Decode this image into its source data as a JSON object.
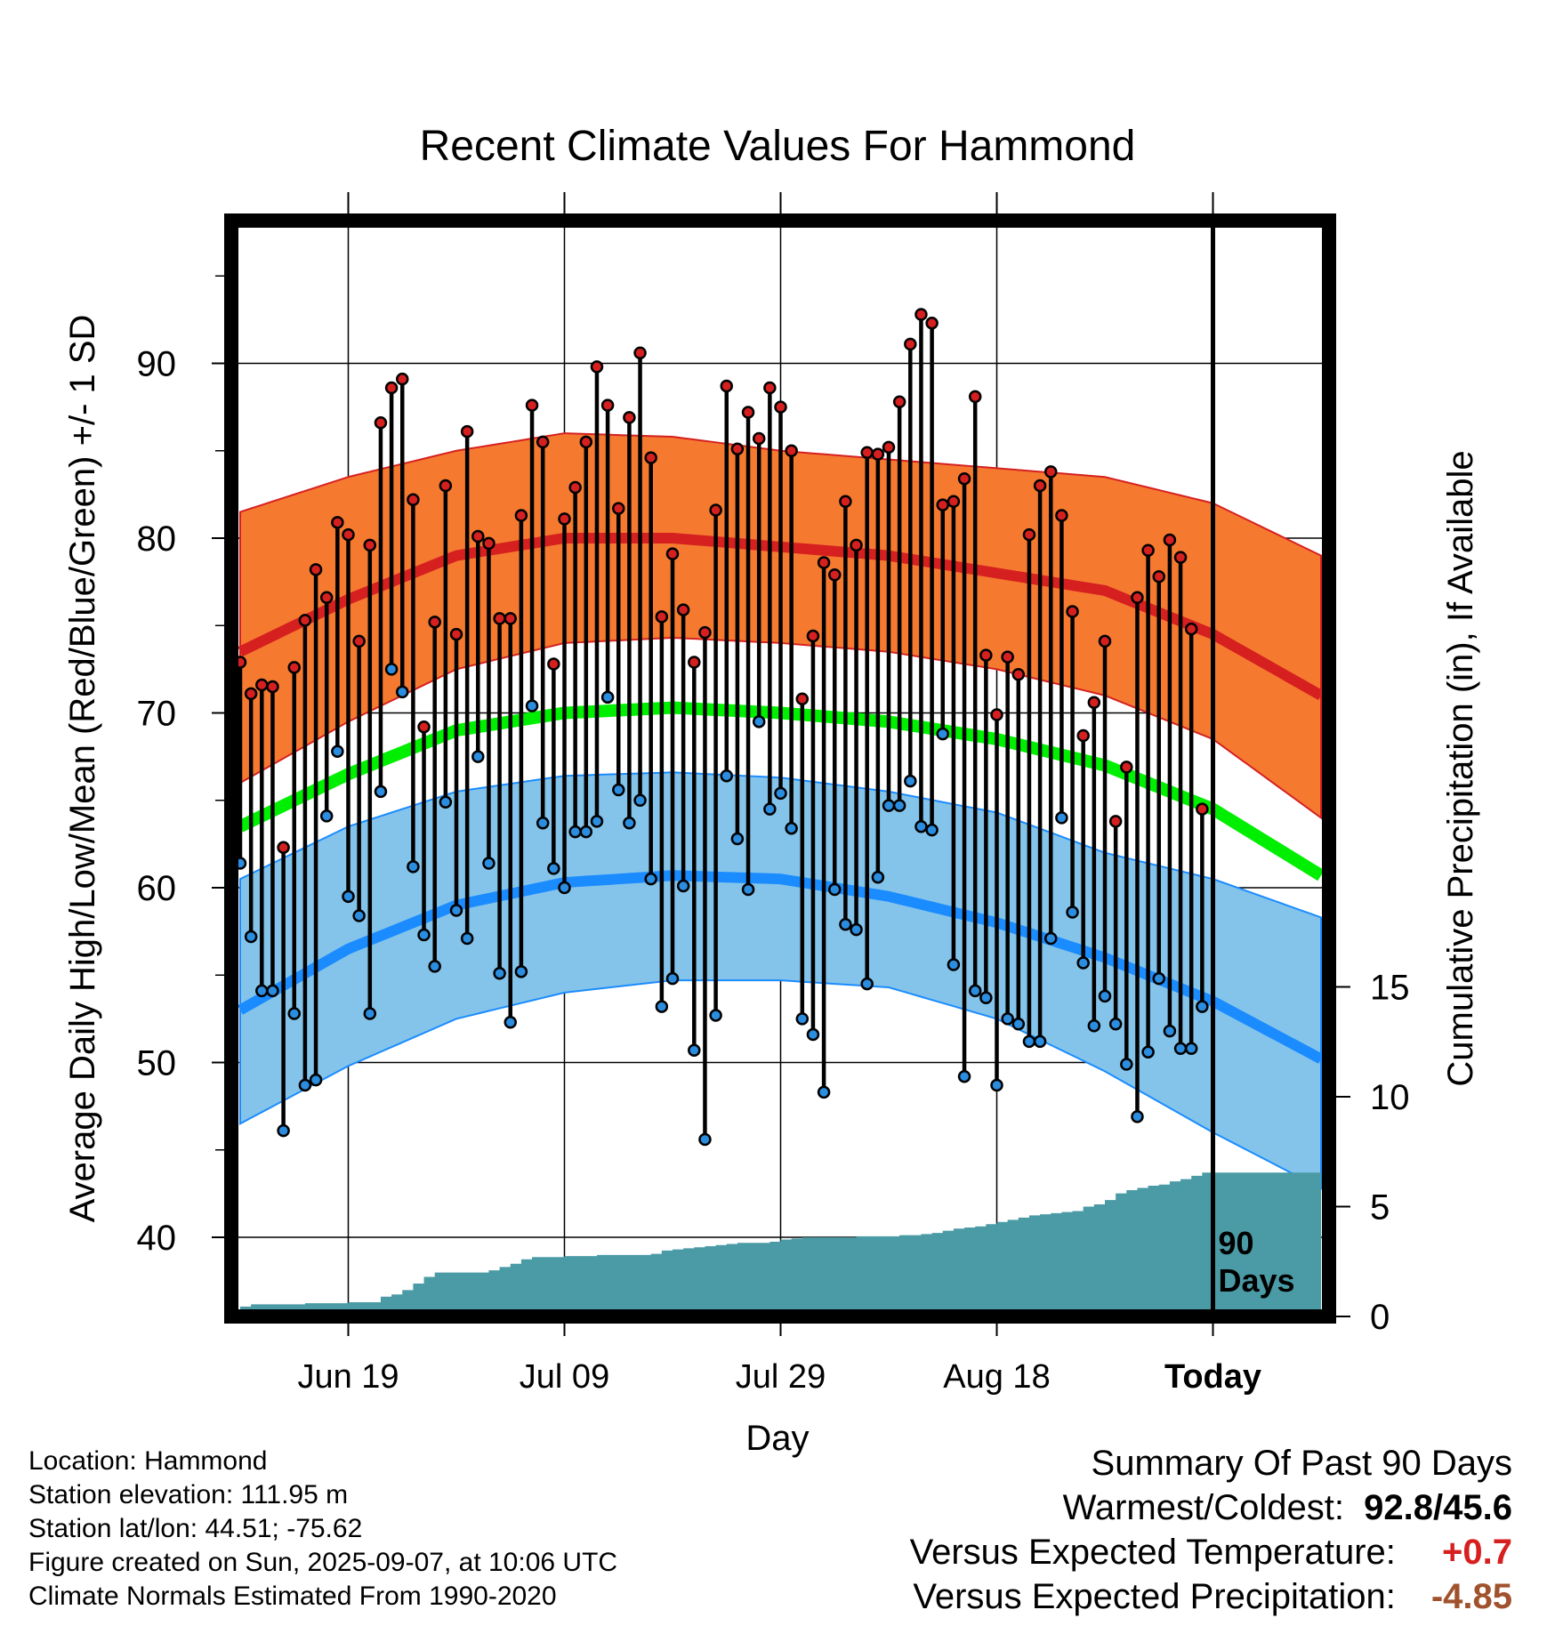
{
  "chart_data": {
    "type": "line",
    "title": "Recent Climate Values For Hammond",
    "xlabel": "Day",
    "ylabel": "Average Daily High/Low/Mean (Red/Blue/Green) +/- 1 SD",
    "y2label": "Cumulative Precipitation (in), If Available",
    "ylim": [
      35,
      98
    ],
    "y2lim": [
      0,
      30
    ],
    "yticks": [
      "40",
      "50",
      "60",
      "70",
      "80",
      "90"
    ],
    "y2ticks": [
      "0",
      "5",
      "10",
      "15"
    ],
    "x_tick_labels": [
      "Jun 19",
      "Jul 09",
      "Jul 29",
      "Aug 18",
      "Today"
    ],
    "x_tick_days": [
      10,
      30,
      50,
      70,
      90
    ],
    "day_range": [
      0,
      100
    ],
    "today_day": 90,
    "marker_text": [
      "90",
      "Days"
    ],
    "grid": true,
    "normals": {
      "days": [
        0,
        10,
        20,
        30,
        40,
        50,
        60,
        70,
        80,
        90,
        100
      ],
      "high_mean": [
        73.5,
        76.5,
        79.0,
        80.0,
        80.0,
        79.5,
        79.0,
        78.0,
        77.0,
        74.5,
        71.0
      ],
      "high_upper": [
        81.5,
        83.5,
        85.0,
        86.0,
        85.8,
        85.0,
        84.5,
        84.0,
        83.5,
        82.0,
        79.0
      ],
      "high_lower": [
        66.0,
        69.5,
        72.5,
        74.0,
        74.3,
        74.0,
        73.5,
        72.5,
        71.0,
        68.5,
        64.0
      ],
      "mean": [
        63.5,
        66.5,
        69.0,
        70.0,
        70.3,
        70.0,
        69.5,
        68.5,
        67.0,
        64.5,
        60.7
      ],
      "low_mean": [
        53.0,
        56.5,
        59.0,
        60.3,
        60.7,
        60.5,
        59.5,
        58.0,
        56.0,
        53.5,
        50.2
      ],
      "low_upper": [
        60.5,
        63.5,
        65.5,
        66.4,
        66.6,
        66.3,
        65.5,
        64.3,
        62.0,
        60.5,
        58.3
      ],
      "low_lower": [
        46.5,
        49.8,
        52.5,
        54.0,
        54.7,
        54.7,
        54.3,
        52.5,
        49.5,
        46.0,
        42.8
      ]
    },
    "series": [
      {
        "name": "High",
        "values": [
          72.9,
          71.1,
          71.6,
          71.5,
          62.3,
          72.6,
          75.3,
          78.2,
          76.6,
          80.9,
          80.2,
          74.1,
          79.6,
          86.6,
          88.6,
          89.1,
          82.2,
          69.2,
          75.2,
          83.0,
          74.5,
          86.1,
          80.1,
          79.7,
          75.4,
          75.4,
          81.3,
          87.6,
          85.5,
          72.8,
          81.1,
          82.9,
          85.5,
          89.8,
          87.6,
          81.7,
          86.9,
          90.6,
          84.6,
          75.5,
          79.1,
          75.9,
          72.9,
          74.6,
          81.6,
          88.7,
          85.1,
          87.2,
          85.7,
          88.6,
          87.5,
          85.0,
          70.8,
          74.4,
          78.6,
          77.9,
          82.1,
          79.6,
          84.9,
          84.8,
          85.2,
          87.8,
          91.1,
          92.8,
          92.3,
          81.9,
          82.1,
          83.4,
          88.1,
          73.3,
          69.9,
          73.2,
          72.2,
          80.2,
          83.0,
          83.8,
          81.3,
          75.8,
          68.7,
          70.6,
          74.1,
          63.8,
          66.9,
          76.6,
          79.3,
          77.8,
          79.9,
          78.9,
          74.8,
          64.5
        ]
      },
      {
        "name": "Low",
        "values": [
          61.4,
          57.2,
          54.1,
          54.1,
          46.1,
          52.8,
          48.7,
          49.0,
          64.1,
          67.8,
          59.5,
          58.4,
          52.8,
          65.5,
          72.5,
          71.2,
          61.2,
          57.3,
          55.5,
          64.9,
          58.7,
          57.1,
          67.5,
          61.4,
          55.1,
          52.3,
          55.2,
          70.4,
          63.7,
          61.1,
          60.0,
          63.2,
          63.2,
          63.8,
          70.9,
          65.6,
          63.7,
          65.0,
          60.5,
          53.2,
          54.8,
          60.1,
          50.7,
          45.6,
          52.7,
          66.4,
          62.8,
          59.9,
          69.5,
          64.5,
          65.4,
          63.4,
          52.5,
          51.6,
          48.3,
          59.9,
          57.9,
          57.6,
          54.5,
          60.6,
          64.7,
          64.7,
          66.1,
          63.5,
          63.3,
          68.8,
          55.6,
          49.2,
          54.1,
          53.7,
          48.7,
          52.5,
          52.2,
          51.2,
          51.2,
          57.1,
          64.0,
          58.6,
          55.7,
          52.1,
          53.8,
          52.2,
          49.9,
          46.9,
          50.6,
          54.8,
          51.8,
          50.8,
          50.8,
          53.2
        ]
      },
      {
        "name": "Cumulative Precipitation",
        "values": [
          0.45,
          0.55,
          0.55,
          0.55,
          0.55,
          0.55,
          0.6,
          0.6,
          0.6,
          0.6,
          0.65,
          0.65,
          0.65,
          0.9,
          1.0,
          1.2,
          1.5,
          1.8,
          2.0,
          2.0,
          2.0,
          2.0,
          2.0,
          2.1,
          2.25,
          2.4,
          2.6,
          2.7,
          2.7,
          2.7,
          2.75,
          2.75,
          2.75,
          2.8,
          2.8,
          2.8,
          2.8,
          2.8,
          2.85,
          3.0,
          3.05,
          3.1,
          3.15,
          3.2,
          3.25,
          3.3,
          3.35,
          3.35,
          3.35,
          3.4,
          3.5,
          3.55,
          3.6,
          3.6,
          3.6,
          3.6,
          3.6,
          3.65,
          3.65,
          3.65,
          3.65,
          3.7,
          3.7,
          3.75,
          3.8,
          3.9,
          4.0,
          4.05,
          4.1,
          4.2,
          4.3,
          4.4,
          4.5,
          4.6,
          4.65,
          4.7,
          4.75,
          4.8,
          5.0,
          5.1,
          5.3,
          5.6,
          5.75,
          5.85,
          5.95,
          6.0,
          6.15,
          6.25,
          6.4,
          6.55
        ]
      }
    ],
    "colors": {
      "high_band": "#f57a30",
      "high_line": "#d62020",
      "mean_line": "#00ee00",
      "low_band": "#85c4ea",
      "low_line": "#1a8cff",
      "precip": "#4a9ba5",
      "high_point": "#d62020",
      "low_point": "#2b8de0"
    }
  },
  "footer": {
    "location": "Location: Hammond",
    "elevation": "Station elevation: 111.95 m",
    "latlon": "Station lat/lon: 44.51; -75.62",
    "created": "Figure created on Sun, 2025-09-07, at 10:06 UTC",
    "normals": "Climate Normals Estimated From 1990-2020"
  },
  "summary": {
    "title": "Summary Of Past 90 Days",
    "warm_cold_label": "Warmest/Coldest:",
    "warm_cold_value": "92.8/45.6",
    "temp_label": "Versus Expected Temperature:",
    "temp_value": "+0.7",
    "temp_color": "#d62020",
    "precip_label": "Versus Expected Precipitation:",
    "precip_value": "-4.85",
    "precip_color": "#a0522d"
  }
}
